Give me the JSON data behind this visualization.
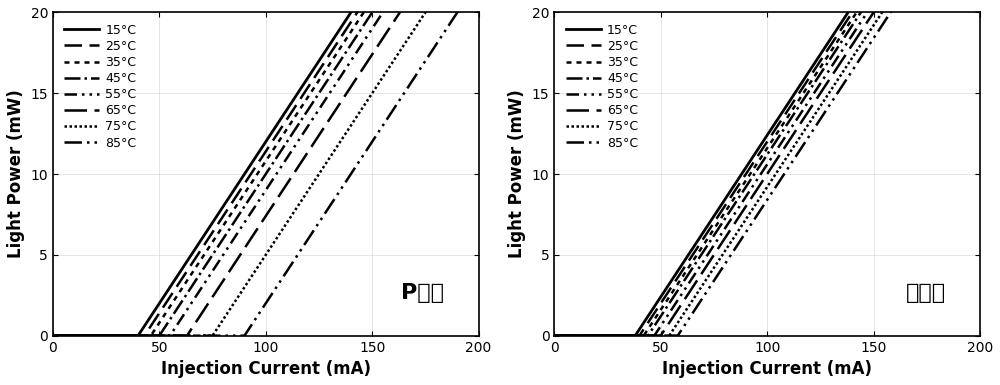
{
  "labels": [
    "15°C",
    "25°C",
    "35°C",
    "45°C",
    "55°C",
    "65°C",
    "75°C",
    "85°C"
  ],
  "panel1_label": "P掺杂",
  "panel2_label": "双掺杂",
  "xlabel": "Injection Current (mA)",
  "ylabel": "Light Power (mW)",
  "xlim": [
    0,
    200
  ],
  "ylim": [
    0,
    20
  ],
  "xticks": [
    0,
    50,
    100,
    150,
    200
  ],
  "yticks": [
    0,
    5,
    10,
    15,
    20
  ],
  "p_thresholds": [
    40,
    43,
    46,
    50,
    55,
    63,
    75,
    90
  ],
  "p_slopes": [
    0.2,
    0.2,
    0.2,
    0.2,
    0.2,
    0.2,
    0.2,
    0.2
  ],
  "d_thresholds": [
    38,
    40,
    42,
    44,
    47,
    50,
    54,
    58
  ],
  "d_slopes": [
    0.2,
    0.2,
    0.2,
    0.2,
    0.2,
    0.2,
    0.2,
    0.2
  ],
  "linewidth": 1.8,
  "legend_fontsize": 9,
  "label_fontsize": 12,
  "tick_fontsize": 10,
  "annotation_fontsize": 16
}
